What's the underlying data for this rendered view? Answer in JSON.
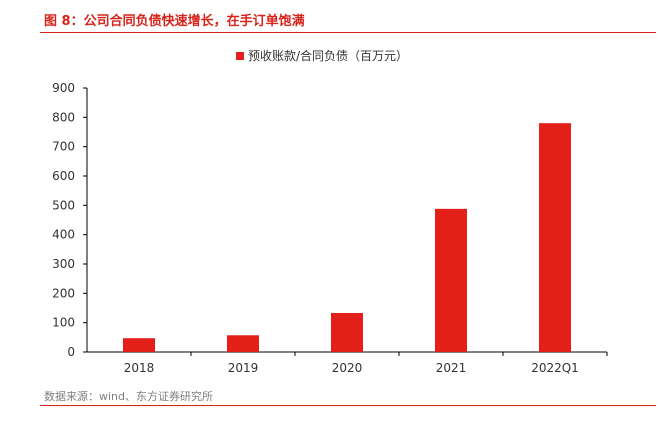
{
  "figure": {
    "title": "图 8：公司合同负债快速增长，在手订单饱满",
    "source": "数据来源：wind、东方证券研究所"
  },
  "chart_data": {
    "type": "bar",
    "categories": [
      "2018",
      "2019",
      "2020",
      "2021",
      "2022Q1"
    ],
    "series": [
      {
        "name": "预收账款/合同负债（百万元）",
        "values": [
          47,
          57,
          133,
          488,
          780
        ],
        "color": "#e21f19"
      }
    ],
    "ylim": [
      0,
      900
    ],
    "yticks": [
      0,
      100,
      200,
      300,
      400,
      500,
      600,
      700,
      800,
      900
    ],
    "grid": false,
    "legend_position": "top-center"
  }
}
